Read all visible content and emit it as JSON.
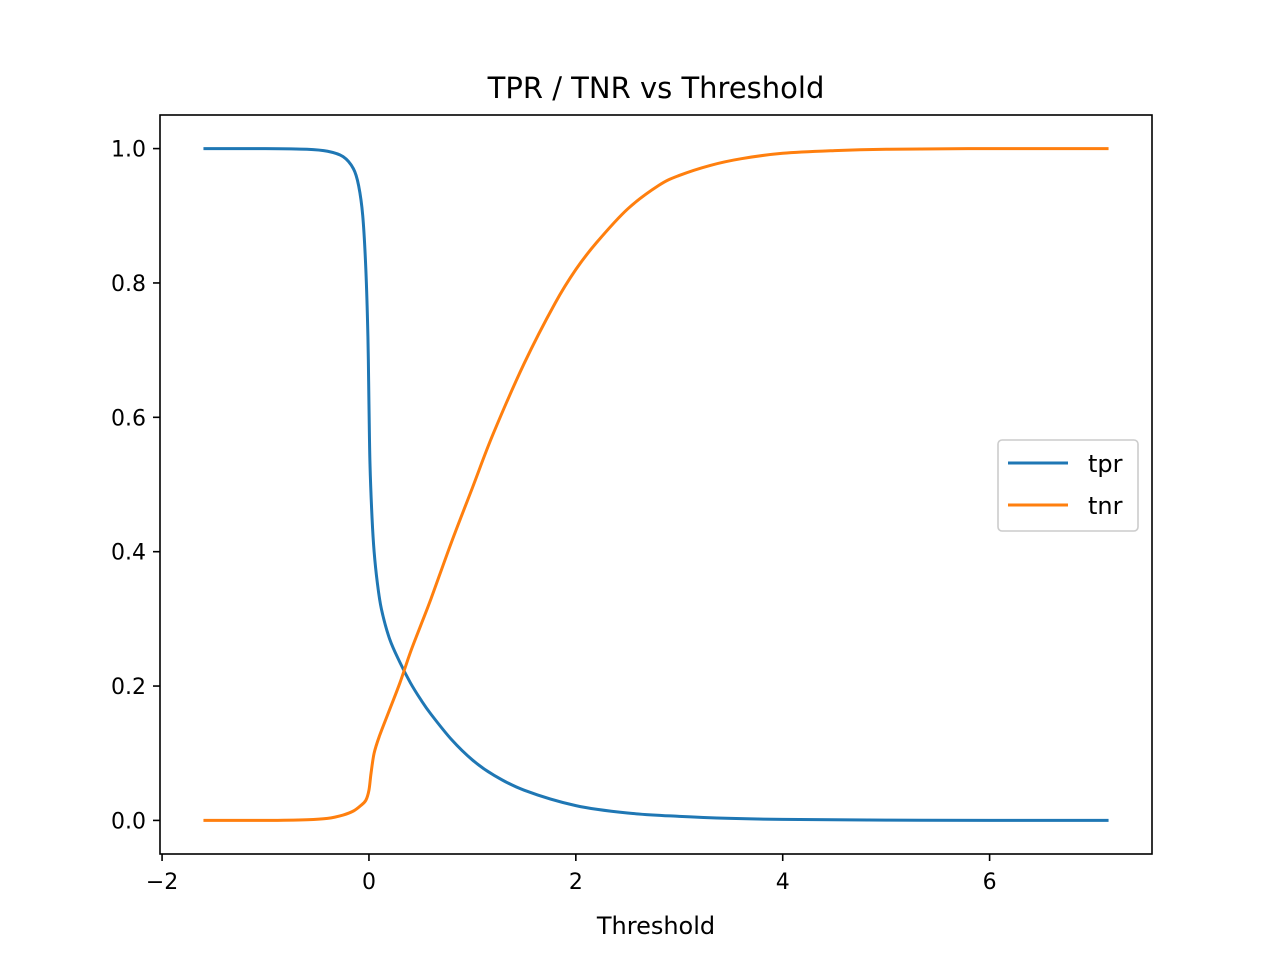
{
  "chart_data": {
    "type": "line",
    "title": "TPR / TNR vs Threshold",
    "xlabel": "Threshold",
    "ylabel": "",
    "xlim": [
      -2.02,
      7.57
    ],
    "ylim": [
      -0.05,
      1.05
    ],
    "xticks": [
      -2,
      0,
      2,
      4,
      6
    ],
    "xtick_labels": [
      "−2",
      "0",
      "2",
      "4",
      "6"
    ],
    "yticks": [
      0.0,
      0.2,
      0.4,
      0.6,
      0.8,
      1.0
    ],
    "ytick_labels": [
      "0.0",
      "0.2",
      "0.4",
      "0.6",
      "0.8",
      "1.0"
    ],
    "grid": false,
    "legend_position": "center-right",
    "series": [
      {
        "name": "tpr",
        "color": "#1f77b4",
        "x": [
          -1.6,
          -1.0,
          -0.6,
          -0.4,
          -0.25,
          -0.15,
          -0.1,
          -0.06,
          -0.03,
          -0.01,
          0.0,
          0.01,
          0.03,
          0.05,
          0.08,
          0.12,
          0.2,
          0.3,
          0.4,
          0.5,
          0.6,
          0.8,
          1.0,
          1.2,
          1.5,
          2.0,
          2.5,
          3.0,
          3.5,
          4.0,
          5.0,
          6.0,
          7.15
        ],
        "y": [
          1.0,
          1.0,
          0.999,
          0.996,
          0.988,
          0.97,
          0.945,
          0.9,
          0.82,
          0.72,
          0.62,
          0.53,
          0.45,
          0.4,
          0.355,
          0.315,
          0.27,
          0.235,
          0.205,
          0.18,
          0.158,
          0.12,
          0.09,
          0.068,
          0.045,
          0.022,
          0.011,
          0.006,
          0.003,
          0.0015,
          0.0005,
          0.0001,
          0.0
        ]
      },
      {
        "name": "tnr",
        "color": "#ff7f0e",
        "x": [
          -1.6,
          -1.0,
          -0.6,
          -0.4,
          -0.25,
          -0.15,
          -0.08,
          -0.03,
          0.0,
          0.02,
          0.05,
          0.1,
          0.2,
          0.3,
          0.4,
          0.5,
          0.6,
          0.8,
          1.0,
          1.2,
          1.5,
          1.8,
          2.0,
          2.2,
          2.5,
          2.8,
          3.0,
          3.3,
          3.6,
          4.0,
          4.5,
          5.0,
          6.0,
          7.15
        ],
        "y": [
          0.0,
          0.0,
          0.001,
          0.003,
          0.008,
          0.014,
          0.022,
          0.03,
          0.045,
          0.07,
          0.1,
          0.125,
          0.165,
          0.205,
          0.25,
          0.29,
          0.33,
          0.415,
          0.495,
          0.575,
          0.68,
          0.77,
          0.82,
          0.86,
          0.91,
          0.945,
          0.96,
          0.975,
          0.985,
          0.993,
          0.997,
          0.999,
          1.0,
          1.0
        ]
      }
    ]
  }
}
